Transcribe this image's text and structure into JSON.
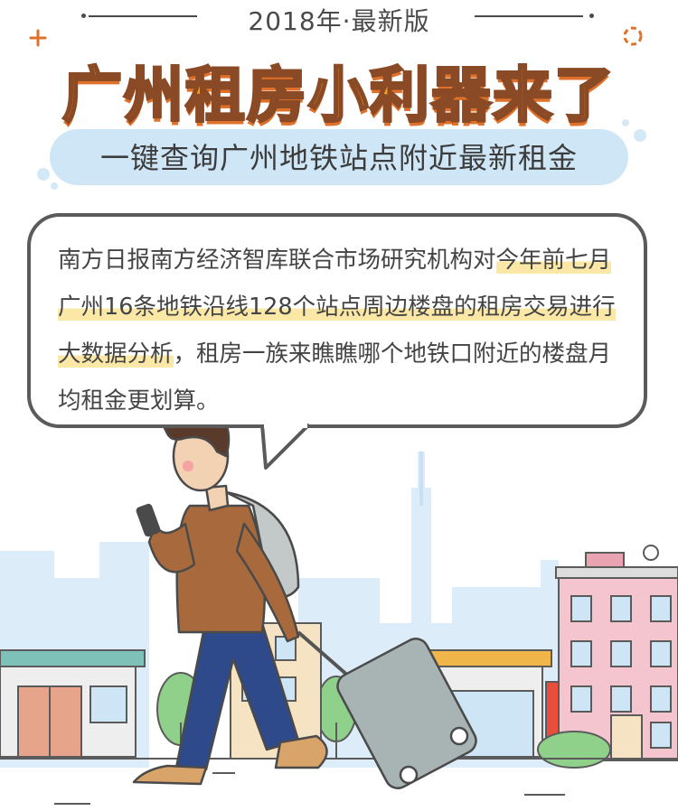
{
  "header": {
    "year_label": "2018年·最新版",
    "title": "广州租房小利器来了",
    "subtitle": "一键查询广州地铁站点附近最新租金"
  },
  "intro": {
    "part1": "南方日报南方经济智库联合市场研究机构对",
    "highlight": "今年前七月广州16条地铁沿线128个站点周边楼盘的租房交易进行大数据分析",
    "part2": "，租房一族来瞧瞧哪个地铁口附近的楼盘月均租金更划算。"
  },
  "colors": {
    "title_fill": "#f5a21b",
    "title_outline": "#8a4a25",
    "subtitle_bg": "#cfe6f7",
    "highlight": "#fbe8a6",
    "skyline": "#d9ecf9"
  },
  "scene": {
    "illustration": "walking-man-with-suitcase-city-skyline"
  }
}
